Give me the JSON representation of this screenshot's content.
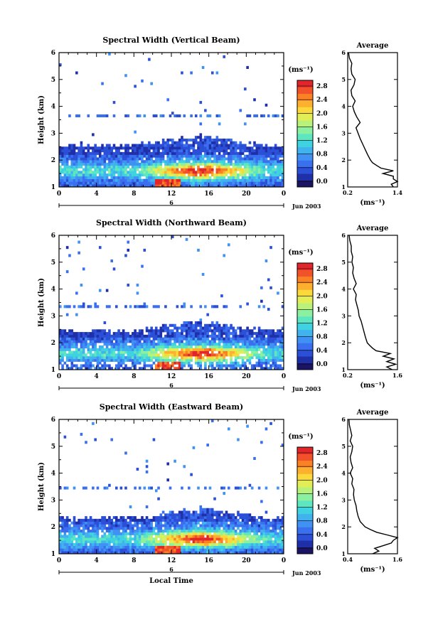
{
  "figure": {
    "xlabel": "Local Time",
    "colorbar_ticks": [
      "0.0",
      "0.4",
      "0.8",
      "1.2",
      "1.6",
      "2.0",
      "2.4",
      "2.8"
    ],
    "colormap": [
      "#1b1464",
      "#1f2fa8",
      "#2b4fd6",
      "#3a6ff0",
      "#3f91f4",
      "#40b3ee",
      "#3fd2e0",
      "#5de6c0",
      "#8bf0a0",
      "#b8f27a",
      "#e2ee55",
      "#fbd93a",
      "#fdb02d",
      "#fb8125",
      "#f2522a",
      "#e0262a"
    ],
    "line_color": "#000000"
  },
  "chart_data": [
    {
      "type": "heatmap",
      "title": "Spectral Width (Vertical Beam)",
      "ylabel": "Height (km)",
      "xlabel": "",
      "x_ticks": [
        "0",
        "4",
        "8",
        "12",
        "16",
        "20",
        "0"
      ],
      "y_ticks": [
        "1",
        "2",
        "3",
        "4",
        "5",
        "6"
      ],
      "xlim": [
        0,
        24
      ],
      "ylim": [
        1,
        6
      ],
      "date_marker": "6",
      "date_label": "Jun 2003",
      "colorbar": {
        "unit": "(ms⁻¹)",
        "range": [
          0.0,
          2.8
        ]
      },
      "profile": {
        "title": "Average",
        "xlabel": "(ms⁻¹)",
        "x_ticks": [
          "0.2",
          "1.4"
        ],
        "xlim": [
          0.2,
          1.4
        ],
        "height": [
          1.0,
          1.1,
          1.2,
          1.3,
          1.4,
          1.5,
          1.6,
          1.7,
          1.8,
          1.9,
          2.0,
          2.2,
          2.4,
          2.6,
          2.8,
          3.0,
          3.2,
          3.4,
          3.6,
          3.8,
          4.0,
          4.2,
          4.4,
          4.6,
          4.8,
          5.0,
          5.2,
          5.4,
          5.6,
          5.8,
          6.0
        ],
        "values": [
          1.3,
          1.25,
          1.4,
          1.3,
          1.3,
          1.05,
          1.3,
          1.0,
          0.9,
          0.8,
          0.75,
          0.68,
          0.62,
          0.56,
          0.5,
          0.45,
          0.4,
          0.5,
          0.42,
          0.36,
          0.32,
          0.38,
          0.3,
          0.28,
          0.35,
          0.38,
          0.3,
          0.28,
          0.3,
          0.24,
          0.22
        ]
      }
    },
    {
      "type": "heatmap",
      "title": "Spectral Width (Northward Beam)",
      "ylabel": "Height (km)",
      "xlabel": "",
      "x_ticks": [
        "0",
        "4",
        "8",
        "12",
        "16",
        "20",
        "0"
      ],
      "y_ticks": [
        "1",
        "2",
        "3",
        "4",
        "5",
        "6"
      ],
      "xlim": [
        0,
        24
      ],
      "ylim": [
        1,
        6
      ],
      "date_marker": "6",
      "date_label": "Jun 2003",
      "colorbar": {
        "unit": "(ms⁻¹)",
        "range": [
          0.0,
          2.8
        ]
      },
      "profile": {
        "title": "Average",
        "xlabel": "(ms⁻¹)",
        "x_ticks": [
          "0.2",
          "1.6"
        ],
        "xlim": [
          0.2,
          1.6
        ],
        "height": [
          1.0,
          1.1,
          1.2,
          1.3,
          1.4,
          1.5,
          1.6,
          1.7,
          1.8,
          1.9,
          2.0,
          2.2,
          2.4,
          2.6,
          2.8,
          3.0,
          3.2,
          3.4,
          3.6,
          3.8,
          4.0,
          4.2,
          4.4,
          4.6,
          4.8,
          5.0,
          5.2,
          5.4,
          5.6,
          5.8,
          6.0
        ],
        "values": [
          1.45,
          1.3,
          1.55,
          1.3,
          1.5,
          1.2,
          1.4,
          1.0,
          0.9,
          0.82,
          0.75,
          0.7,
          0.66,
          0.62,
          0.58,
          0.52,
          0.5,
          0.46,
          0.42,
          0.44,
          0.36,
          0.44,
          0.38,
          0.34,
          0.36,
          0.32,
          0.34,
          0.3,
          0.3,
          0.26,
          0.24
        ]
      }
    },
    {
      "type": "heatmap",
      "title": "Spectral Width (Eastward Beam)",
      "ylabel": "Height (km)",
      "xlabel": "Local Time",
      "x_ticks": [
        "0",
        "4",
        "8",
        "12",
        "16",
        "20",
        "0"
      ],
      "y_ticks": [
        "1",
        "2",
        "3",
        "4",
        "5",
        "6"
      ],
      "xlim": [
        0,
        24
      ],
      "ylim": [
        1,
        6
      ],
      "date_marker": "6",
      "date_label": "Jun 2003",
      "colorbar": {
        "unit": "(ms⁻¹)",
        "range": [
          0.0,
          2.8
        ]
      },
      "profile": {
        "title": "Average",
        "xlabel": "(ms⁻¹)",
        "x_ticks": [
          "0.4",
          "1.6"
        ],
        "xlim": [
          0.4,
          1.6
        ],
        "height": [
          1.0,
          1.1,
          1.2,
          1.3,
          1.4,
          1.5,
          1.6,
          1.7,
          1.8,
          1.9,
          2.0,
          2.2,
          2.4,
          2.6,
          2.8,
          3.0,
          3.2,
          3.4,
          3.6,
          3.8,
          4.0,
          4.2,
          4.4,
          4.6,
          4.8,
          5.0,
          5.2,
          5.4,
          5.6,
          5.8,
          6.0
        ],
        "values": [
          1.0,
          1.15,
          1.05,
          1.25,
          1.45,
          1.5,
          1.6,
          1.35,
          1.1,
          0.95,
          0.82,
          0.7,
          0.65,
          0.62,
          0.6,
          0.56,
          0.54,
          0.55,
          0.5,
          0.52,
          0.46,
          0.52,
          0.48,
          0.46,
          0.5,
          0.52,
          0.46,
          0.5,
          0.47,
          0.44,
          0.43
        ]
      }
    }
  ]
}
